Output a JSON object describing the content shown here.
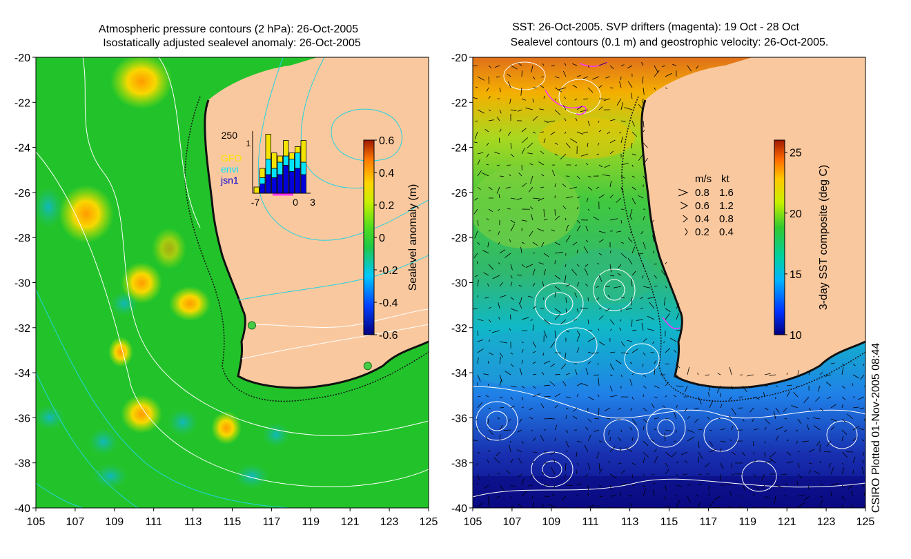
{
  "left_panel": {
    "title_line1": "Atmospheric pressure contours (2 hPa): 26-Oct-2005",
    "title_line2": "Isostatically adjusted sealevel anomaly: 26-Oct-2005",
    "x_ticks": [
      "105",
      "107",
      "109",
      "111",
      "113",
      "115",
      "117",
      "119",
      "121",
      "123",
      "125"
    ],
    "y_ticks": [
      "-20",
      "-22",
      "-24",
      "-26",
      "-28",
      "-30",
      "-32",
      "-34",
      "-36",
      "-38",
      "-40"
    ],
    "colorbar": {
      "label": "Sealevel anomaly (m)",
      "ticks": [
        "0.6",
        "0.4",
        "0.2",
        "0",
        "-0.2",
        "-0.4",
        "-0.6"
      ],
      "range": [
        -0.6,
        0.6
      ]
    },
    "inset": {
      "top_label": "250",
      "one_label": "1",
      "legend": [
        {
          "label": "GFO",
          "color": "#f5e400"
        },
        {
          "label": "envi",
          "color": "#00e5ff"
        },
        {
          "label": "jsn1",
          "color": "#0000d8"
        }
      ],
      "x_ticks": [
        "-7",
        "0",
        "3"
      ],
      "bars": [
        {
          "day": -7,
          "jsn1": 0.0,
          "envi": 0.0,
          "gfo": 0.1
        },
        {
          "day": -6,
          "jsn1": 0.15,
          "envi": 0.25,
          "gfo": 0.4
        },
        {
          "day": -5,
          "jsn1": 0.3,
          "envi": 0.55,
          "gfo": 0.95
        },
        {
          "day": -4,
          "jsn1": 0.25,
          "envi": 0.4,
          "gfo": 0.65
        },
        {
          "day": -3,
          "jsn1": 0.3,
          "envi": 0.5,
          "gfo": 0.6
        },
        {
          "day": -2,
          "jsn1": 0.45,
          "envi": 0.6,
          "gfo": 0.85
        },
        {
          "day": -1,
          "jsn1": 0.35,
          "envi": 0.55,
          "gfo": 0.65
        },
        {
          "day": 0,
          "jsn1": 0.4,
          "envi": 0.65,
          "gfo": 0.75
        },
        {
          "day": 1,
          "jsn1": 0.3,
          "envi": 0.5,
          "gfo": 0.85
        }
      ]
    },
    "markers": [
      {
        "name": "tide-gauge-fremantle",
        "lon": 116.0,
        "lat": -31.9,
        "color": "#44cc44"
      },
      {
        "name": "tide-gauge-esperance",
        "lon": 121.9,
        "lat": -33.7,
        "color": "#44cc44"
      }
    ]
  },
  "right_panel": {
    "title_line1": "SST: 26-Oct-2005. SVP drifters (magenta): 19 Oct - 28 Oct",
    "title_line2": "Sealevel contours (0.1 m) and geostrophic velocity: 26-Oct-2005.",
    "x_ticks": [
      "105",
      "107",
      "109",
      "111",
      "113",
      "115",
      "117",
      "119",
      "121",
      "123",
      "125"
    ],
    "y_ticks": [
      "-20",
      "-22",
      "-24",
      "-26",
      "-28",
      "-30",
      "-32",
      "-34",
      "-36",
      "-38",
      "-40"
    ],
    "colorbar": {
      "label": "3-day SST composite (deg C)",
      "ticks": [
        "25",
        "20",
        "15",
        "10"
      ],
      "range": [
        10,
        26
      ]
    },
    "velocity_legend": {
      "header_ms": "m/s",
      "header_kt": "kt",
      "rows": [
        {
          "ms": "0.8",
          "kt": "1.6"
        },
        {
          "ms": "0.6",
          "kt": "1.2"
        },
        {
          "ms": "0.4",
          "kt": "0.8"
        },
        {
          "ms": "0.2",
          "kt": "0.4"
        }
      ]
    }
  },
  "footer": {
    "credit": "CSIRO Plotted 01-Nov-2005 08:44"
  },
  "colors": {
    "land": "#fac89e",
    "ocean_anomaly_base": "#1fc52a",
    "coast": "#000000",
    "pressure_contour_white": "#ffffff",
    "pressure_contour_cyan": "#22d3e0"
  }
}
